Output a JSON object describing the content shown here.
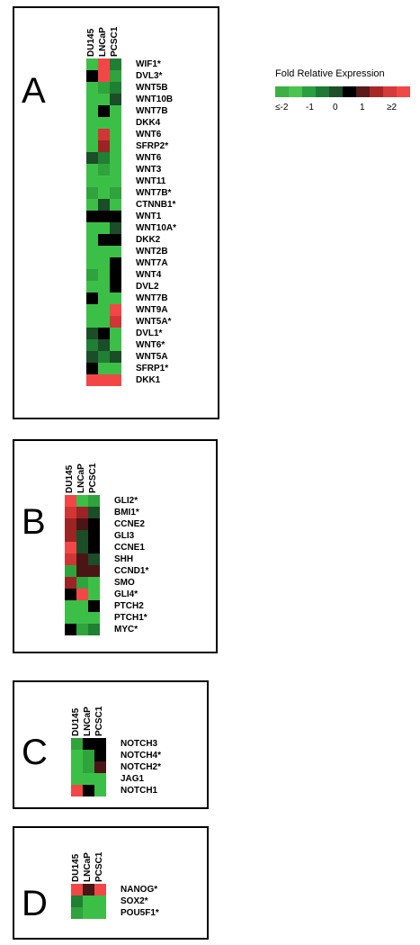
{
  "legend": {
    "title": "Fold Relative Expression",
    "ticks": [
      "≤-2",
      "-1",
      "0",
      "1",
      "≥2"
    ],
    "colors": [
      "#3cb043",
      "#4cc24f",
      "#28a040",
      "#1c7a35",
      "#1f4f2a",
      "#000000",
      "#5a1a1a",
      "#a82828",
      "#d63a3a",
      "#f04848"
    ]
  },
  "colors": {
    "-2": "#3cbf47",
    "-1.5": "#2fa33c",
    "-1": "#1f7f33",
    "-0.5": "#1a4d28",
    "0": "#000000",
    "0.5": "#4a1515",
    "1": "#9c2424",
    "1.5": "#d23535",
    "2": "#f24747"
  },
  "chart_data": [
    {
      "type": "heatmap",
      "panel": "A",
      "columns": [
        "DU145",
        "LNCaP",
        "PCSC1"
      ],
      "rows": [
        "WIF1*",
        "DVL3*",
        "WNT5B",
        "WNT10B",
        "WNT7B",
        "DKK4",
        "WNT6",
        "SFRP2*",
        "WNT6",
        "WNT3",
        "WNT11",
        "WNT7B*",
        "CTNNB1*",
        "WNT1",
        "WNT10A*",
        "DKK2",
        "WNT2B",
        "WNT7A",
        "WNT4",
        "DVL2",
        "WNT7B",
        "WNT9A",
        "WNT5A*",
        "DVL1*",
        "WNT6*",
        "WNT5A",
        "SFRP1*",
        "DKK1"
      ],
      "values": [
        [
          -2,
          2,
          -1
        ],
        [
          0,
          2,
          -1.5
        ],
        [
          -2,
          -1.5,
          -1
        ],
        [
          -2,
          -2,
          -0.5
        ],
        [
          -2,
          0,
          -2
        ],
        [
          -2,
          -2,
          -2
        ],
        [
          -2,
          1.5,
          -2
        ],
        [
          -2,
          1,
          -2
        ],
        [
          -0.5,
          -1,
          -2
        ],
        [
          -2,
          -1.5,
          -2
        ],
        [
          -2,
          -2,
          -2
        ],
        [
          -1.5,
          -2,
          -1.5
        ],
        [
          -2,
          -0.5,
          -2
        ],
        [
          0,
          0,
          0
        ],
        [
          -2,
          -2,
          -0.5
        ],
        [
          -2,
          0,
          0
        ],
        [
          -2,
          -2,
          -2
        ],
        [
          -2,
          -2,
          0
        ],
        [
          -1.5,
          -2,
          0
        ],
        [
          -2,
          -2,
          0
        ],
        [
          0,
          -2,
          -2
        ],
        [
          -2,
          -2,
          2
        ],
        [
          -2,
          -2,
          1.5
        ],
        [
          -0.5,
          0,
          -2
        ],
        [
          -1,
          -0.5,
          -2
        ],
        [
          -0.5,
          -1,
          -0.5
        ],
        [
          0,
          -2,
          -2
        ],
        [
          2,
          2,
          2
        ]
      ]
    },
    {
      "type": "heatmap",
      "panel": "B",
      "columns": [
        "DU145",
        "LNCaP",
        "PCSC1"
      ],
      "rows": [
        "GLI2*",
        "BMI1*",
        "CCNE2",
        "GLI3",
        "CCNE1",
        "SHH",
        "CCND1*",
        "SMO",
        "GLI4*",
        "PTCH2",
        "PTCH1*",
        "MYC*"
      ],
      "values": [
        [
          2,
          -2,
          -1.5
        ],
        [
          1.5,
          1,
          -0.5
        ],
        [
          1,
          0.5,
          0
        ],
        [
          1,
          -0.5,
          0
        ],
        [
          2,
          -0.5,
          0
        ],
        [
          1.5,
          0.5,
          -0.5
        ],
        [
          -1.5,
          0.5,
          0.5
        ],
        [
          1,
          -1.5,
          -2
        ],
        [
          0,
          2,
          -2
        ],
        [
          -2,
          -2,
          0
        ],
        [
          -2,
          -2,
          -2
        ],
        [
          0,
          -1.5,
          -1
        ]
      ]
    },
    {
      "type": "heatmap",
      "panel": "C",
      "columns": [
        "DU145",
        "LNCaP",
        "PCSC1"
      ],
      "rows": [
        "NOTCH3",
        "NOTCH4*",
        "NOTCH2*",
        "JAG1",
        "NOTCH1"
      ],
      "values": [
        [
          -1.5,
          0,
          0
        ],
        [
          -2,
          -1.5,
          0
        ],
        [
          -2,
          -1.5,
          0.5
        ],
        [
          -2,
          -2,
          -2
        ],
        [
          2,
          0,
          -2
        ]
      ]
    },
    {
      "type": "heatmap",
      "panel": "D",
      "columns": [
        "DU145",
        "LNCaP",
        "PCSC1"
      ],
      "rows": [
        "NANOG*",
        "SOX2*",
        "POU5F1*"
      ],
      "values": [
        [
          2,
          0.5,
          2
        ],
        [
          -1,
          -2,
          -2
        ],
        [
          -1.5,
          -2,
          -2
        ]
      ]
    }
  ]
}
